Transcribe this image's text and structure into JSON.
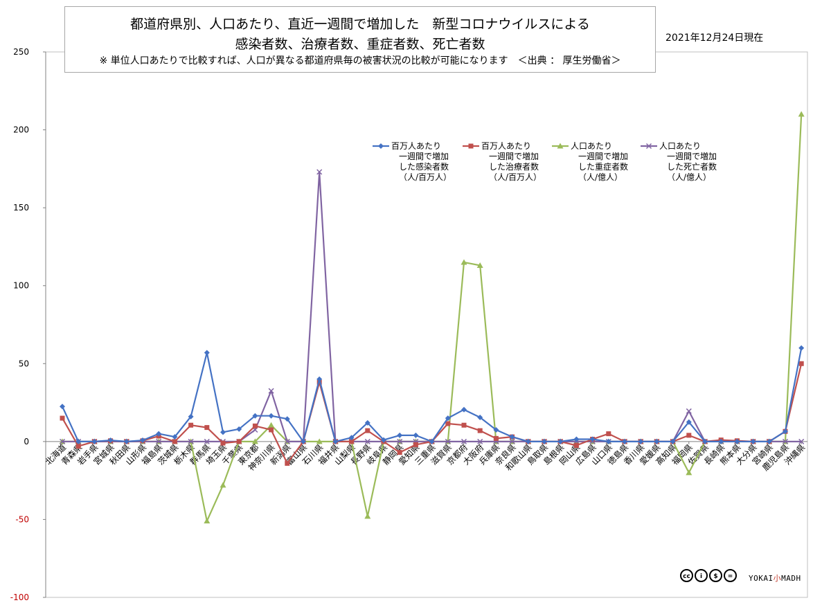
{
  "title": {
    "line1": "都道府県別、人口あたり、直近一週間で増加した　新型コロナウイルスによる",
    "line2": "感染者数、治療者数、重症者数、死亡者数",
    "line3": "※ 単位人口あたりで比較すれば、人口が異なる都道府県毎の被害状況の比較が可能になります　＜出典 ： 厚生労働省＞"
  },
  "date": "2021年12月24日現在",
  "logo": {
    "left": "YOKAI",
    "mid": "小",
    "right": "MADH"
  },
  "cc_icons": [
    "cc",
    "by",
    "nc",
    "nd"
  ],
  "chart_data": {
    "type": "line",
    "ylim": [
      -100,
      250
    ],
    "yticks": [
      -100,
      -50,
      0,
      50,
      100,
      150,
      200,
      250
    ],
    "grid": false,
    "legend_position": "top-right",
    "categories": [
      "北海道",
      "青森県",
      "岩手県",
      "宮城県",
      "秋田県",
      "山形県",
      "福島県",
      "茨城県",
      "栃木県",
      "群馬県",
      "埼玉県",
      "千葉県",
      "東京都",
      "神奈川県",
      "新潟県",
      "富山県",
      "石川県",
      "福井県",
      "山梨県",
      "長野県",
      "岐阜県",
      "静岡県",
      "愛知県",
      "三重県",
      "滋賀県",
      "京都府",
      "大阪府",
      "兵庫県",
      "奈良県",
      "和歌山県",
      "鳥取県",
      "島根県",
      "岡山県",
      "広島県",
      "山口県",
      "徳島県",
      "香川県",
      "愛媛県",
      "高知県",
      "福岡県",
      "佐賀県",
      "長崎県",
      "熊本県",
      "大分県",
      "宮崎県",
      "鹿児島県",
      "沖縄県"
    ],
    "series": [
      {
        "name": "百万人あたり\n一週間で増加\nした感染者数\n（人/百万人）",
        "color": "#4472c4",
        "marker": "diamond",
        "values": [
          22.5,
          0,
          0,
          0.8,
          0,
          0.8,
          5,
          3,
          16,
          57,
          6,
          8,
          16.5,
          16.5,
          14.5,
          0,
          40,
          0,
          2.5,
          12,
          1,
          4,
          4,
          0,
          15,
          20.5,
          15.5,
          7.5,
          3,
          0,
          0,
          0,
          1.5,
          1.5,
          0,
          0,
          0,
          0,
          0,
          12.5,
          0,
          0,
          0,
          0,
          0,
          6.5,
          60
        ]
      },
      {
        "name": "百万人あたり\n一週間で増加\nした治療者数\n（人/百万人）",
        "color": "#c0504d",
        "marker": "square",
        "values": [
          15,
          -3,
          0,
          0.5,
          0,
          0.5,
          3.5,
          0,
          10.5,
          9,
          -1,
          0,
          10,
          7.5,
          -14,
          0,
          38,
          0,
          0,
          7,
          0,
          -7,
          -2,
          0,
          11.5,
          10.5,
          7,
          2,
          3,
          0,
          0,
          0,
          -2.5,
          1.5,
          5,
          0,
          0,
          0,
          0,
          4,
          0,
          1,
          0.5,
          0,
          0,
          6.5,
          50
        ]
      },
      {
        "name": "人口あたり\n一週間で増加\nした重症者数\n（人/億人）",
        "color": "#9bbb59",
        "marker": "triangle",
        "values": [
          0,
          0,
          0,
          0,
          0,
          0,
          0,
          0,
          0,
          -51,
          -28,
          0,
          0,
          10.5,
          0,
          0,
          0,
          0,
          0,
          -48,
          0,
          0,
          0,
          0,
          0,
          115,
          113,
          0,
          0,
          0,
          0,
          0,
          0,
          0,
          0,
          0,
          0,
          0,
          0,
          -20,
          0,
          0,
          0,
          0,
          0,
          0,
          210
        ]
      },
      {
        "name": "人口あたり\n一週間で増加\nした死亡者数\n（人/億人）",
        "color": "#8064a2",
        "marker": "x",
        "values": [
          0,
          0,
          0,
          0,
          0,
          0,
          0,
          0,
          0,
          0,
          0,
          0,
          7.5,
          32.5,
          0,
          0,
          173,
          0,
          0,
          0,
          0,
          0,
          0,
          0,
          0,
          0,
          0,
          0,
          0,
          0,
          0,
          0,
          0,
          0,
          0,
          0,
          0,
          0,
          0,
          19.5,
          0,
          0,
          0,
          0,
          0,
          0,
          0
        ]
      }
    ]
  }
}
